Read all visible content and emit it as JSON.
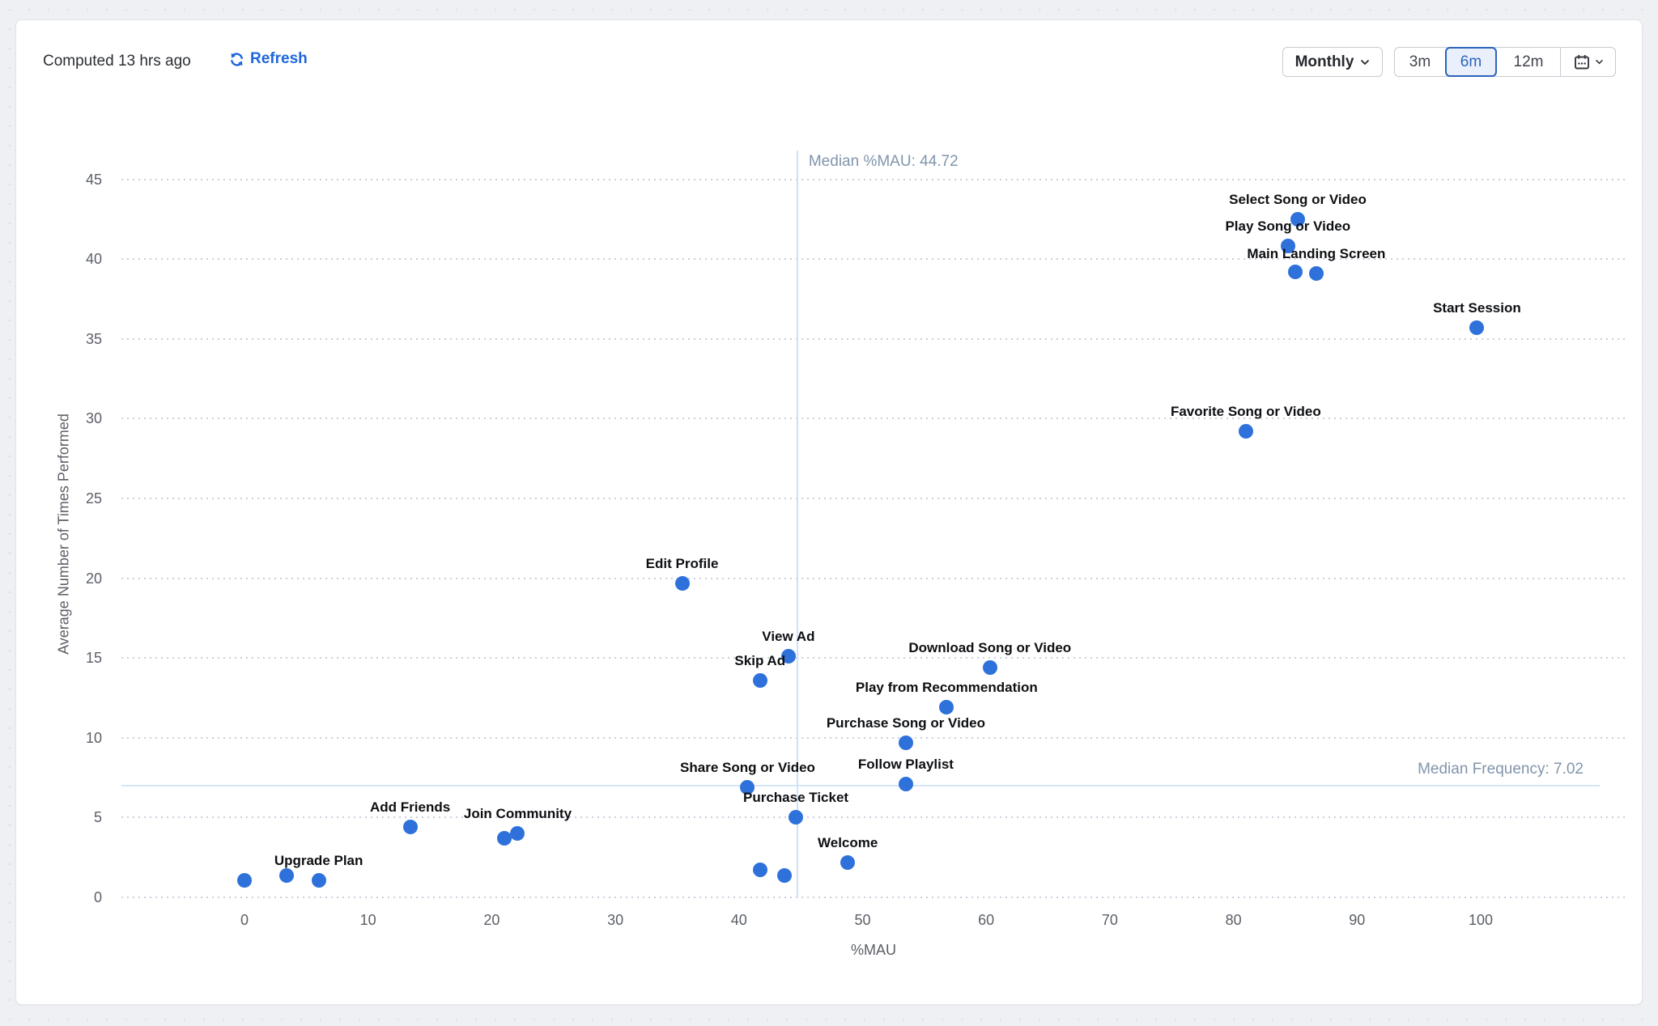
{
  "header": {
    "computed": "Computed 13 hrs ago",
    "refresh": "Refresh",
    "interval": "Monthly",
    "ranges": [
      "3m",
      "6m",
      "12m"
    ],
    "selected_range": "6m"
  },
  "colors": {
    "point": "#2e71db",
    "refresh_link": "#1d66d9",
    "selected_range": "#2b63bb",
    "median_line": "#cfe2f7",
    "median_text": "#8195ac",
    "grid": "#c9d0dc",
    "tick_text": "#5b6067",
    "label_text": "#0d0f12"
  },
  "chart_data": {
    "type": "scatter",
    "xlabel": "%MAU",
    "ylabel": "Average Number of Times Performed",
    "x_ticks": [
      0,
      10,
      20,
      30,
      40,
      50,
      60,
      70,
      80,
      90,
      100
    ],
    "y_ticks": [
      0,
      5,
      10,
      15,
      20,
      25,
      30,
      35,
      40,
      45
    ],
    "xlim": [
      -10,
      112
    ],
    "ylim": [
      0,
      46
    ],
    "grid": "horizontal-dotted",
    "legend": "none",
    "median_x": {
      "value": 44.72,
      "label": "Median %MAU: 44.72"
    },
    "median_y": {
      "value": 7.02,
      "label": "Median Frequency: 7.02"
    },
    "points": [
      {
        "name": "Select Song or Video",
        "x": 85.2,
        "y": 42.5
      },
      {
        "name": "Play Song or Video",
        "x": 84.4,
        "y": 40.8
      },
      {
        "name": "",
        "x": 85.0,
        "y": 39.2
      },
      {
        "name": "Main Landing Screen",
        "x": 86.7,
        "y": 39.1
      },
      {
        "name": "Start Session",
        "x": 99.7,
        "y": 35.7
      },
      {
        "name": "Favorite Song or Video",
        "x": 81.0,
        "y": 29.2
      },
      {
        "name": "Edit Profile",
        "x": 35.4,
        "y": 19.7
      },
      {
        "name": "View Ad",
        "x": 44.0,
        "y": 15.1
      },
      {
        "name": "Download Song or Video",
        "x": 60.3,
        "y": 14.4
      },
      {
        "name": "Skip Ad",
        "x": 41.7,
        "y": 13.6
      },
      {
        "name": "Play from Recommendation",
        "x": 56.8,
        "y": 11.9
      },
      {
        "name": "Purchase Song or Video",
        "x": 53.5,
        "y": 9.7
      },
      {
        "name": "Follow Playlist",
        "x": 53.5,
        "y": 7.1
      },
      {
        "name": "Share Song or Video",
        "x": 40.7,
        "y": 6.9
      },
      {
        "name": "Purchase Ticket",
        "x": 44.6,
        "y": 5.0
      },
      {
        "name": "Welcome",
        "x": 48.8,
        "y": 2.2
      },
      {
        "name": "Add Friends",
        "x": 13.4,
        "y": 4.4
      },
      {
        "name": "Join Community",
        "x": 22.1,
        "y": 4.0
      },
      {
        "name": "",
        "x": 21.0,
        "y": 3.7
      },
      {
        "name": "",
        "x": 41.7,
        "y": 1.7
      },
      {
        "name": "",
        "x": 43.7,
        "y": 1.35
      },
      {
        "name": "Upgrade Plan",
        "x": 6.0,
        "y": 1.05
      },
      {
        "name": "",
        "x": 3.4,
        "y": 1.35
      },
      {
        "name": "",
        "x": 0.0,
        "y": 1.05
      }
    ]
  }
}
